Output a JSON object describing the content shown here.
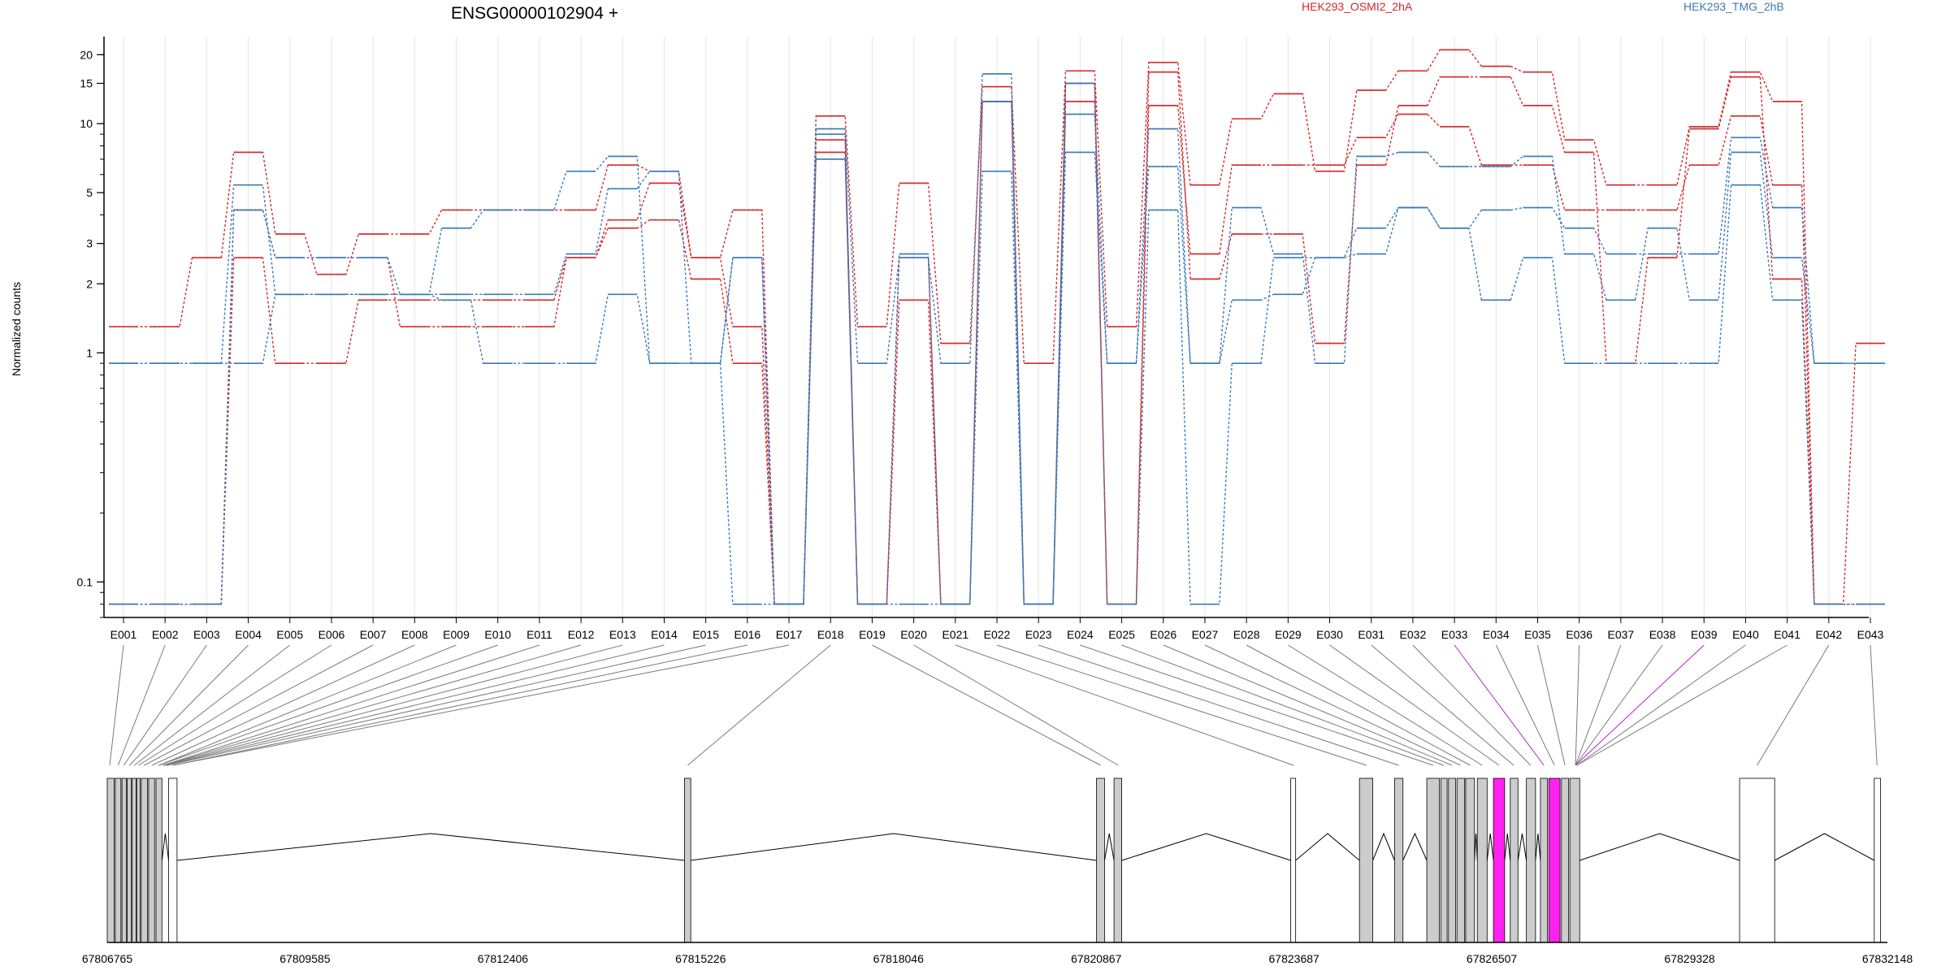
{
  "chart_data": {
    "type": "line",
    "title": "ENSG00000102904 +",
    "ylabel": "Normalized counts",
    "yscale": "log",
    "ylim": [
      0.07,
      24
    ],
    "yticks": [
      0.1,
      1,
      2,
      3,
      5,
      10,
      15,
      20
    ],
    "ytick_labels": [
      "0.1",
      "1",
      "2",
      "3",
      "5",
      "10",
      "15",
      "20"
    ],
    "legend": [
      {
        "name": "HEK293_OSMI2_2hA",
        "color": "#d62728"
      },
      {
        "name": "HEK293_TMG_2hB",
        "color": "#3a7ab8"
      }
    ],
    "categories": [
      "E001",
      "E002",
      "E003",
      "E004",
      "E005",
      "E006",
      "E007",
      "E008",
      "E009",
      "E010",
      "E011",
      "E012",
      "E013",
      "E014",
      "E015",
      "E016",
      "E017",
      "E018",
      "E019",
      "E020",
      "E021",
      "E022",
      "E023",
      "E024",
      "E025",
      "E026",
      "E027",
      "E028",
      "E029",
      "E030",
      "E031",
      "E032",
      "E033",
      "E034",
      "E035",
      "E036",
      "E037",
      "E038",
      "E039",
      "E040",
      "E041",
      "E042",
      "E043"
    ],
    "series": [
      {
        "group": "HEK293_OSMI2_2hA",
        "color": "#d62728",
        "values": [
          1.3,
          1.3,
          2.6,
          7.5,
          3.3,
          2.2,
          3.3,
          3.3,
          4.2,
          4.2,
          4.2,
          4.2,
          6.6,
          6.2,
          2.6,
          4.2,
          0.08,
          10.8,
          1.3,
          5.5,
          1.1,
          14.5,
          0.9,
          17,
          1.3,
          18.5,
          5.4,
          10.5,
          13.5,
          6.2,
          14,
          17,
          21,
          17.8,
          16.8,
          8.5,
          5.4,
          5.4,
          9.7,
          16.8,
          12.5,
          0.08,
          1.1
        ]
      },
      {
        "group": "HEK293_OSMI2_2hA",
        "color": "#d62728",
        "values": [
          0.08,
          0.08,
          0.08,
          2.6,
          0.9,
          0.9,
          1.7,
          1.7,
          1.7,
          1.7,
          1.7,
          2.6,
          3.8,
          5.5,
          2.6,
          1.3,
          0.08,
          7.5,
          0.08,
          2.6,
          0.08,
          12.5,
          0.08,
          12.5,
          0.08,
          12,
          2.7,
          6.6,
          6.6,
          6.6,
          8.7,
          11,
          9.7,
          6.6,
          6.6,
          4.2,
          4.2,
          4.2,
          6.6,
          10.8,
          5.4,
          0.08,
          0.08
        ]
      },
      {
        "group": "HEK293_OSMI2_2hA",
        "color": "#d62728",
        "values": [
          0.08,
          0.08,
          0.08,
          4.2,
          2.6,
          2.6,
          2.6,
          1.3,
          1.3,
          1.3,
          1.3,
          2.6,
          3.5,
          3.8,
          2.1,
          0.9,
          0.08,
          8.5,
          0.08,
          1.7,
          0.08,
          12.5,
          0.08,
          15,
          0.08,
          16.8,
          2.1,
          3.3,
          3.3,
          1.1,
          6.6,
          12,
          16,
          16,
          12,
          7.5,
          0.9,
          2.6,
          9.5,
          16,
          2.1,
          0.08,
          0.08
        ]
      },
      {
        "group": "HEK293_TMG_2hB",
        "color": "#3a7ab8",
        "values": [
          0.9,
          0.9,
          0.9,
          5.4,
          1.8,
          1.8,
          1.8,
          1.8,
          1.8,
          1.8,
          1.8,
          2.7,
          5.2,
          6.2,
          0.9,
          2.6,
          0.08,
          9.5,
          0.9,
          2.6,
          0.9,
          16.5,
          0.08,
          11,
          0.9,
          6.5,
          0.9,
          1.7,
          1.8,
          2.6,
          2.7,
          4.3,
          3.5,
          4.2,
          4.3,
          3.5,
          2.7,
          2.7,
          2.7,
          8.7,
          4.3,
          0.9,
          0.9
        ]
      },
      {
        "group": "HEK293_TMG_2hB",
        "color": "#3a7ab8",
        "values": [
          0.9,
          0.9,
          0.9,
          0.9,
          1.8,
          1.8,
          1.8,
          1.8,
          3.5,
          4.2,
          4.2,
          6.2,
          7.2,
          0.9,
          0.9,
          2.6,
          0.08,
          9,
          0.08,
          2.7,
          0.08,
          6.2,
          0.08,
          7.5,
          0.9,
          9.5,
          0.9,
          4.3,
          2.7,
          0.9,
          7.2,
          7.5,
          6.5,
          6.5,
          7.2,
          2.7,
          1.7,
          3.5,
          1.7,
          7.5,
          2.6,
          0.9,
          0.9
        ]
      },
      {
        "group": "HEK293_TMG_2hB",
        "color": "#3a7ab8",
        "values": [
          0.08,
          0.08,
          0.08,
          4.2,
          2.6,
          2.6,
          2.6,
          1.8,
          1.7,
          0.9,
          0.9,
          0.9,
          1.8,
          0.9,
          0.9,
          0.08,
          0.08,
          7,
          0.08,
          0.08,
          0.08,
          12.5,
          0.08,
          15,
          0.08,
          4.2,
          0.08,
          0.9,
          2.6,
          2.6,
          3.5,
          4.3,
          3.5,
          1.7,
          2.6,
          0.9,
          0.9,
          0.9,
          0.9,
          5.4,
          1.7,
          0.08,
          0.08
        ]
      }
    ],
    "gene_model": {
      "xlim": [
        67806765,
        67832148
      ],
      "tick_labels": [
        "67806765",
        "67809585",
        "67812406",
        "67815226",
        "67818046",
        "67820867",
        "67823687",
        "67826507",
        "67829328",
        "67832148"
      ]
    }
  }
}
